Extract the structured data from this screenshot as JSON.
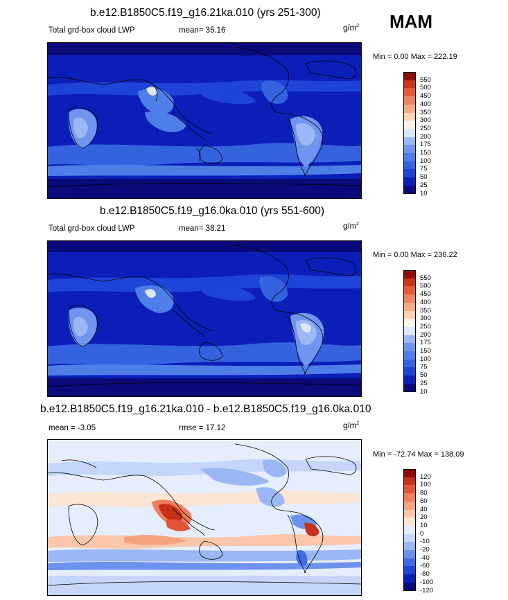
{
  "season": "MAM",
  "panels": [
    {
      "title": "b.e12.B1850C5.f19_g16.21ka.010 (yrs 251-300)",
      "left_label": "Total grd-box cloud LWP",
      "center_label": "mean=  35.16",
      "units_base": "g/m",
      "units_sup": "2",
      "minmax": "Min =   0.00 Max = 222.19",
      "colorbar_labels": [
        "550",
        "500",
        "450",
        "400",
        "350",
        "300",
        "250",
        "200",
        "175",
        "150",
        "100",
        "75",
        "50",
        "25",
        "10"
      ]
    },
    {
      "title": "b.e12.B1850C5.f19_g16.0ka.010 (yrs 551-600)",
      "left_label": "Total grd-box cloud LWP",
      "center_label": "mean=  38.21",
      "units_base": "g/m",
      "units_sup": "2",
      "minmax": "Min =   0.00 Max = 236.22",
      "colorbar_labels": [
        "550",
        "500",
        "450",
        "400",
        "350",
        "300",
        "250",
        "200",
        "175",
        "150",
        "100",
        "75",
        "50",
        "25",
        "10"
      ]
    },
    {
      "title": "b.e12.B1850C5.f19_g16.21ka.010 - b.e12.B1850C5.f19_g16.0ka.010",
      "left_label": "mean =  -3.05",
      "center_label": "rmse =  17.12",
      "units_base": "g/m",
      "units_sup": "2",
      "minmax": "Min = -72.74 Max = 138.09",
      "colorbar_labels": [
        "120",
        "100",
        "80",
        "60",
        "40",
        "20",
        "10",
        "0",
        "-10",
        "-20",
        "-40",
        "-60",
        "-80",
        "-100",
        "-120"
      ]
    }
  ],
  "colors": {
    "abs_scale": [
      "#0a0a7a",
      "#0b1fb8",
      "#1f43d6",
      "#3563e0",
      "#4f7ee8",
      "#7095ee",
      "#9db6f4",
      "#dde8fb",
      "#fdf3e6",
      "#fbd2b4",
      "#f6ab86",
      "#ef8460",
      "#e55a37",
      "#cc3418",
      "#8f0f06"
    ],
    "diff_scale": [
      "#0a0a7a",
      "#0b1fb8",
      "#1f43d6",
      "#3f6ce6",
      "#6d92ee",
      "#9bb7f4",
      "#c5d6fa",
      "#e6eefd",
      "#fbe6d6",
      "#fac7ab",
      "#f5a382",
      "#ee7e5c",
      "#e2553a",
      "#c63119",
      "#8a0e05"
    ]
  }
}
